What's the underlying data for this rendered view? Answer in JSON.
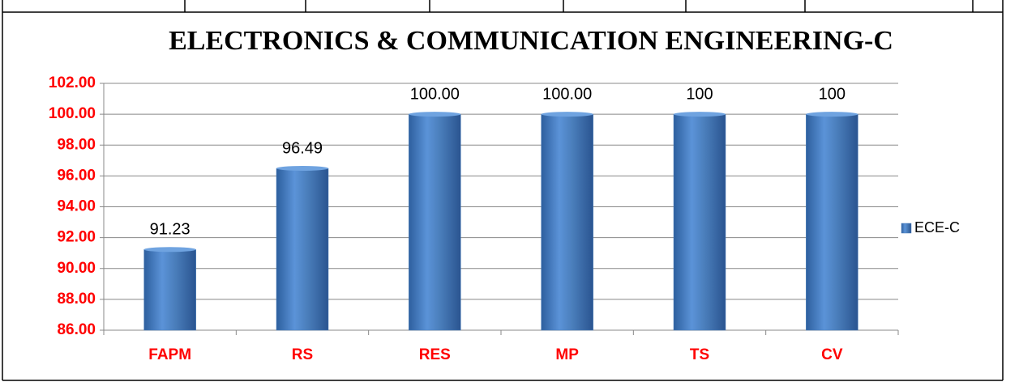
{
  "chart_data": {
    "type": "bar",
    "title": "ELECTRONICS & COMMUNICATION ENGINEERING-C",
    "categories": [
      "FAPM",
      "RS",
      "RES",
      "MP",
      "TS",
      "CV"
    ],
    "series": [
      {
        "name": "ECE-C",
        "color": "#4a7ebb",
        "values": [
          91.23,
          96.49,
          100,
          100,
          100,
          100
        ],
        "value_labels": [
          "91.23",
          "96.49",
          "100.00",
          "100.00",
          "100",
          "100"
        ]
      }
    ],
    "ylim": [
      86,
      102
    ],
    "yticks": [
      {
        "value": 86,
        "label": "86.00"
      },
      {
        "value": 88,
        "label": "88.00"
      },
      {
        "value": 90,
        "label": "90.00"
      },
      {
        "value": 92,
        "label": "92.00"
      },
      {
        "value": 94,
        "label": "94.00"
      },
      {
        "value": 96,
        "label": "96.00"
      },
      {
        "value": 98,
        "label": "98.00"
      },
      {
        "value": 100,
        "label": "100.00"
      },
      {
        "value": 102,
        "label": "102.00"
      }
    ],
    "grid": true,
    "legend": "right"
  }
}
